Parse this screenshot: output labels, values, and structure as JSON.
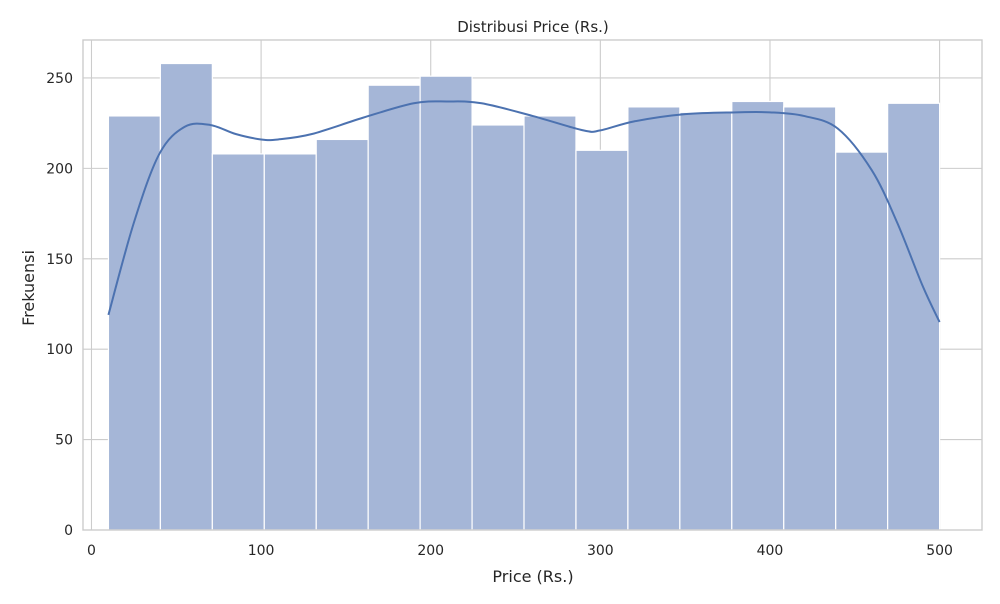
{
  "colors": {
    "bar_fill": "#a5b6d7",
    "bar_edge": "#ffffff",
    "kde_line": "#4c72b0",
    "grid": "#cccccc",
    "spine": "#cccccc",
    "background": "#ffffff"
  },
  "chart_data": {
    "type": "bar",
    "subtype": "histogram with KDE line",
    "title": "Distribusi Price (Rs.)",
    "xlabel": "Price (Rs.)",
    "ylabel": "Frekuensi",
    "xlim": [
      -5,
      525
    ],
    "ylim": [
      0,
      271
    ],
    "grid": true,
    "legend": "none",
    "xticks": [
      0,
      100,
      200,
      300,
      400,
      500
    ],
    "yticks": [
      0,
      50,
      100,
      150,
      200,
      250
    ],
    "bin_edges": [
      10,
      40.625,
      71.25,
      101.875,
      132.5,
      163.125,
      193.75,
      224.375,
      255,
      285.625,
      316.25,
      346.875,
      377.5,
      408.125,
      438.75,
      469.375,
      500
    ],
    "counts": [
      229,
      258,
      208,
      208,
      216,
      246,
      251,
      224,
      229,
      210,
      234,
      231,
      237,
      234,
      209,
      236
    ],
    "kde": {
      "x": [
        10,
        25,
        40,
        55,
        70,
        85,
        100,
        110,
        130,
        160,
        190,
        210,
        230,
        260,
        290,
        300,
        320,
        350,
        380,
        400,
        420,
        440,
        460,
        475,
        490,
        500
      ],
      "y": [
        119,
        170,
        208,
        223,
        224,
        219,
        216,
        216,
        219,
        228,
        236,
        237,
        236,
        229,
        221,
        221,
        226,
        230,
        231,
        231,
        229,
        222,
        199,
        170,
        135,
        115
      ]
    }
  }
}
